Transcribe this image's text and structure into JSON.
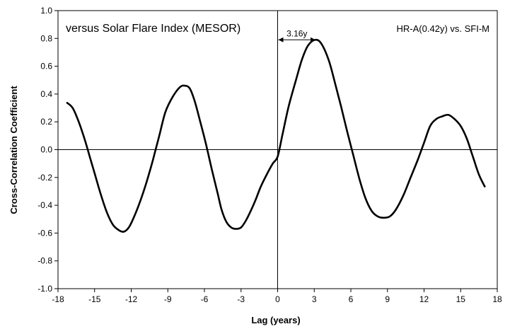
{
  "chart_data": {
    "type": "line",
    "title": "versus Solar Flare Index (MESOR)",
    "xlabel": "Lag (years)",
    "ylabel": "Cross-Correlation  Coefficient",
    "xlim": [
      -18,
      18
    ],
    "ylim": [
      -1.0,
      1.0
    ],
    "x_ticks": [
      "-18",
      "-15",
      "-12",
      "-9",
      "-6",
      "-3",
      "0",
      "3",
      "6",
      "9",
      "12",
      "15",
      "18"
    ],
    "y_ticks": [
      "1.0",
      "0.8",
      "0.6",
      "0.4",
      "0.2",
      "0.0",
      "-0.2",
      "-0.4",
      "-0.6",
      "-0.8",
      "-1.0"
    ],
    "grid": false,
    "annotations": {
      "series_label": "HR-A(0.42y)  vs.  SFI-M",
      "lag_label": "3.16y",
      "lag_arrow_x": [
        0,
        3.16
      ],
      "lag_arrow_y": 0.79
    },
    "series": [
      {
        "x": [
          -17.3,
          -16.8,
          -16.3,
          -15.8,
          -15.4,
          -15.0,
          -14.5,
          -14.0,
          -13.5,
          -13.0,
          -12.6,
          -12.2,
          -11.8,
          -11.3,
          -10.8,
          -10.3,
          -10.0,
          -9.7,
          -9.2,
          -8.6,
          -8.0,
          -7.6,
          -7.2,
          -6.8,
          -6.4,
          -5.9,
          -5.4,
          -4.9,
          -4.6,
          -4.2,
          -3.8,
          -3.4,
          -3.0,
          -2.6,
          -2.2,
          -1.8,
          -1.4,
          -0.9,
          -0.4,
          0.0,
          0.4,
          0.9,
          1.5,
          2.0,
          2.5,
          3.1,
          3.6,
          4.2,
          4.7,
          5.2,
          5.7,
          6.2,
          6.7,
          7.2,
          7.7,
          8.2,
          8.7,
          9.2,
          9.7,
          10.3,
          10.9,
          11.5,
          12.0,
          12.5,
          13.0,
          13.5,
          14.0,
          14.5,
          15.0,
          15.5,
          16.0,
          16.5,
          17.0
        ],
        "y": [
          0.34,
          0.3,
          0.2,
          0.07,
          -0.05,
          -0.17,
          -0.32,
          -0.45,
          -0.54,
          -0.58,
          -0.59,
          -0.56,
          -0.49,
          -0.38,
          -0.25,
          -0.1,
          0.0,
          0.1,
          0.27,
          0.38,
          0.45,
          0.46,
          0.44,
          0.35,
          0.22,
          0.05,
          -0.14,
          -0.32,
          -0.43,
          -0.52,
          -0.56,
          -0.57,
          -0.56,
          -0.51,
          -0.44,
          -0.36,
          -0.27,
          -0.18,
          -0.1,
          -0.05,
          0.11,
          0.31,
          0.5,
          0.65,
          0.75,
          0.79,
          0.76,
          0.64,
          0.48,
          0.31,
          0.13,
          -0.04,
          -0.21,
          -0.35,
          -0.44,
          -0.48,
          -0.49,
          -0.48,
          -0.43,
          -0.33,
          -0.2,
          -0.07,
          0.05,
          0.17,
          0.22,
          0.24,
          0.25,
          0.22,
          0.17,
          0.08,
          -0.05,
          -0.18,
          -0.27
        ]
      }
    ]
  }
}
